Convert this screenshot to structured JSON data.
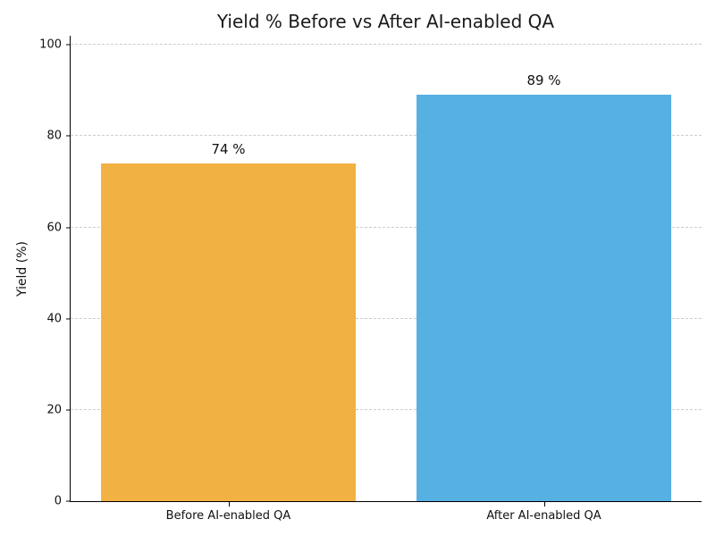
{
  "chart_data": {
    "type": "bar",
    "title": "Yield % Before vs After AI-enabled QA",
    "xlabel": "",
    "ylabel": "Yield (%)",
    "categories": [
      "Before AI-enabled QA",
      "After AI-enabled QA"
    ],
    "values": [
      74,
      89
    ],
    "bar_labels": [
      "74 %",
      "89 %"
    ],
    "bar_colors": [
      "#f2b143",
      "#57b0e2"
    ],
    "ylim": [
      0,
      102
    ],
    "yticks": [
      0,
      20,
      40,
      60,
      80,
      100
    ],
    "grid": "horizontal-dashed",
    "legend": "none"
  },
  "style": {
    "background": "#ffffff",
    "text_color": "#1a1a1a",
    "grid_color": "#cccccc",
    "axis_color": "#000000"
  }
}
